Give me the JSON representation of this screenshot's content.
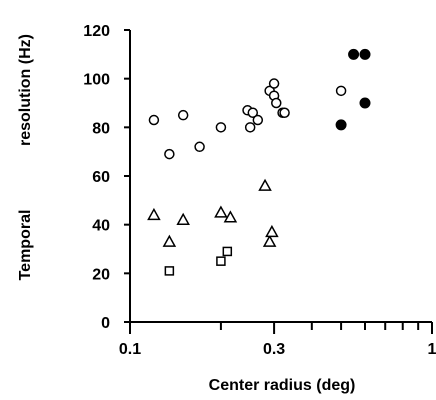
{
  "chart_data": {
    "type": "scatter",
    "xlabel": "Center radius (deg)",
    "ylabel_left": "Temporal",
    "ylabel_right": "resolution (Hz)",
    "xscale": "log",
    "xlim": [
      0.1,
      1
    ],
    "ylim": [
      0,
      120
    ],
    "yticks": [
      0,
      20,
      40,
      60,
      80,
      100,
      120
    ],
    "xtick_labels": [
      {
        "value": 0.1,
        "label": "0.1"
      },
      {
        "value": 0.3,
        "label": "0.3"
      },
      {
        "value": 1,
        "label": "1"
      }
    ],
    "xminor_ticks": [
      0.2,
      0.4,
      0.5,
      0.6,
      0.7,
      0.8,
      0.9
    ],
    "grid": false,
    "series": [
      {
        "marker": "open-circle",
        "points": [
          [
            0.12,
            83
          ],
          [
            0.135,
            69
          ],
          [
            0.15,
            85
          ],
          [
            0.17,
            72
          ],
          [
            0.2,
            80
          ],
          [
            0.245,
            87
          ],
          [
            0.25,
            80
          ],
          [
            0.255,
            86
          ],
          [
            0.265,
            83
          ],
          [
            0.29,
            95
          ],
          [
            0.3,
            93
          ],
          [
            0.305,
            90
          ],
          [
            0.3,
            98
          ],
          [
            0.32,
            86
          ],
          [
            0.325,
            86
          ],
          [
            0.5,
            95
          ]
        ]
      },
      {
        "marker": "filled-circle",
        "points": [
          [
            0.5,
            81
          ],
          [
            0.55,
            110
          ],
          [
            0.6,
            110
          ],
          [
            0.6,
            90
          ]
        ]
      },
      {
        "marker": "open-triangle",
        "points": [
          [
            0.12,
            44
          ],
          [
            0.135,
            33
          ],
          [
            0.15,
            42
          ],
          [
            0.2,
            45
          ],
          [
            0.215,
            43
          ],
          [
            0.28,
            56
          ],
          [
            0.29,
            33
          ],
          [
            0.295,
            37
          ]
        ]
      },
      {
        "marker": "open-square",
        "points": [
          [
            0.135,
            21
          ],
          [
            0.2,
            25
          ],
          [
            0.21,
            29
          ]
        ]
      }
    ]
  }
}
